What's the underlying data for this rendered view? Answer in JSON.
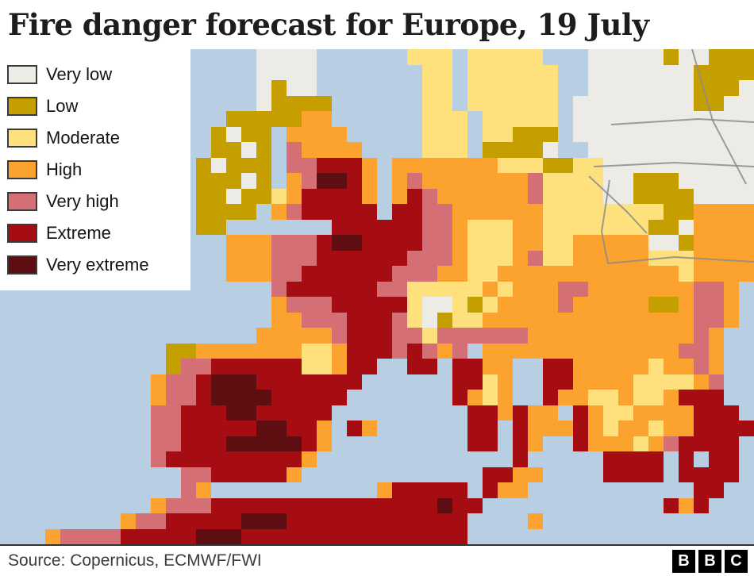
{
  "title": "Fire danger forecast for Europe, 19 July",
  "footer": {
    "source": "Source: Copernicus, ECMWF/FWI",
    "logo_letters": [
      "B",
      "B",
      "C"
    ]
  },
  "legend": {
    "items": [
      {
        "label": "Very low",
        "color": "#ecebe5"
      },
      {
        "label": "Low",
        "color": "#c59e00"
      },
      {
        "label": "Moderate",
        "color": "#fee07d"
      },
      {
        "label": "High",
        "color": "#fba22f"
      },
      {
        "label": "Very high",
        "color": "#d36f75"
      },
      {
        "label": "Extreme",
        "color": "#a60d12"
      },
      {
        "label": "Very extreme",
        "color": "#5e0d10"
      }
    ]
  },
  "map": {
    "sea_color": "#b7cee3",
    "border_color": "#8c8c8c",
    "cols": 50,
    "rows": 32,
    "palette": {
      ".": "#b7cee3",
      "w": "#ecebe5",
      "l": "#c59e00",
      "m": "#fee07d",
      "h": "#fba22f",
      "v": "#d36f75",
      "e": "#a60d12",
      "x": "#5e0d10"
    },
    "grid": [
      ".................wwww......mmm.mmmmm...wwwwwlwwlll",
      ".................wwww.......mm.mmmmmm..wwwwwwwllll",
      ".................wlww.......mm.mmmmmm..wwwwwwwlllw",
      ".................wllll......mm.mmmmmm.wwwwwwwwllww",
      "...............lllllhh......mmm.mmmmm.wwwwwwwwwwww",
      "..............lwll.hhhh.....mmm.mmlll.wwwwwwwwwwww",
      "..............llwl.vhhhh....mmm.llllw..wwwwwwwwwww",
      ".............lwlll.vveeeh.hhhhhhhmmmllmmwwwwwwwwww",
      ".............lllwl.hvxxeh.hvhhhhhhhvmmmmwwlllwwwww",
      ".............llwllmheeeeh.hevhhhhhhvmmmmwwllllwwww",
      ".............llll.hveeeee.eevvhhhhhhmmmmmmmmllhhhh",
      ".............ll.......eeeeeevvhmmmhhmmmmmmmllwhhhh",
      "...............hhhvvvexxeeeevvhmmmhhmmhhhhhwwlhhhh",
      "...............hhhvvveeeeeevvvhmmmhvmmhhhhhmmmhhhh",
      "...............hhhvveeeeeevvvhhmmhhhhhhhhhhhhmhhhh",
      "..................veeeeeevvmmmmmhmhhhvvhhhhhhhvvh.",
      "..................hvvveeeeemwwmlmhhhhvhhhhhllhvvh.",
      "..................hhvvveeevmwlmmhhhhhhhhhhhhhhvvh.",
      ".................hhhhhveeevvmvvvvvvhhhhhhhhhhhvh..",
      "...........llhhhhhhhmmheeevevhv.hhhhhhhhhhhhhvvh..",
      "...........lvveeeeeemmhee..ee.eehh..eehhhhhmhhvh..",
      "..........hvvexxxeeeeeee......eemh..eehhhhmmmmhv..",
      "..........hvvexxxxeeeee.......ehmh..ehhmmhmmheee..",
      "..........vveeexxeeeee.........eehehh.ehmmhhhheee.",
      "..........vveeeeexxeeh.eh......ee.ehhhehmhhmhheeee",
      "..........vveeexxxxxeh.........ee.eh..ehhhmhveeee.",
      "..........veeeeeeeeeh.............e.....eeee.e.ee.",
      "............vveeeeeh............eehh....eeee.eeee.",
      "............vh...........heeeee.ehh...........ee..",
      "..........hvvveeeeeeeeeeeeeeexee............ehe...",
      "........hvveeeeexxxeeeeeeeeeeee....h..............",
      "...hvvvveeeeexxxeeeeeeeeeeeeeee..................."
    ],
    "borders": [
      [
        [
          770,
          95
        ],
        [
          880,
          88
        ],
        [
          950,
          92
        ]
      ],
      [
        [
          748,
          148
        ],
        [
          850,
          143
        ],
        [
          950,
          148
        ]
      ],
      [
        [
          742,
          160
        ],
        [
          790,
          205
        ],
        [
          815,
          232
        ]
      ],
      [
        [
          768,
          165
        ],
        [
          758,
          230
        ],
        [
          766,
          270
        ]
      ],
      [
        [
          766,
          270
        ],
        [
          850,
          262
        ],
        [
          950,
          268
        ]
      ],
      [
        [
          872,
          0
        ],
        [
          898,
          90
        ],
        [
          940,
          170
        ]
      ]
    ]
  }
}
